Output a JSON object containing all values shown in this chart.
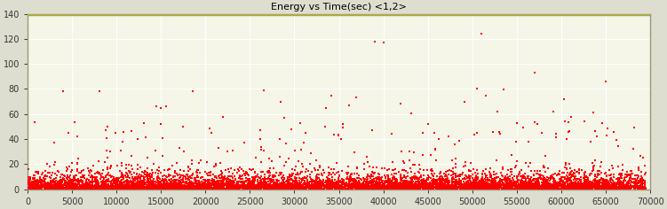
{
  "title": "Energy vs Time(sec) <1,2>",
  "xlim": [
    0,
    70000
  ],
  "ylim": [
    0,
    140
  ],
  "xticks": [
    0,
    5000,
    10000,
    15000,
    20000,
    25000,
    30000,
    35000,
    40000,
    45000,
    50000,
    55000,
    60000,
    65000,
    70000
  ],
  "yticks": [
    0,
    20,
    40,
    60,
    80,
    100,
    120,
    140
  ],
  "marker_color": "#ff0000",
  "plot_bg_color": "#f5f5e8",
  "outer_bg_color": "#deded0",
  "spine_color": "#999977",
  "top_line_color": "#aaaa44",
  "grid_color": "#ffffff",
  "title_fontsize": 8,
  "tick_fontsize": 7,
  "seed": 12345,
  "n_points": 8000,
  "notable_x": [
    39000,
    51000,
    57000,
    65000,
    15000,
    22000,
    28500,
    33500,
    50500,
    40000,
    51500
  ],
  "notable_y": [
    118,
    124,
    93,
    86,
    65,
    58,
    70,
    65,
    80,
    117,
    75
  ]
}
